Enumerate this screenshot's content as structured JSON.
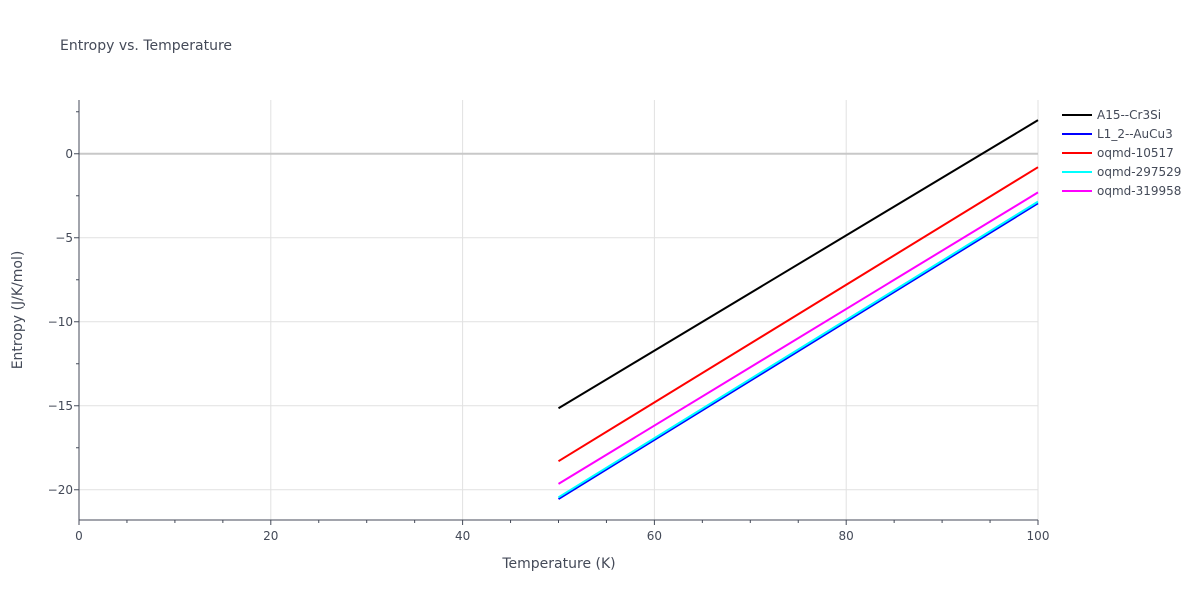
{
  "chart_data": {
    "type": "line",
    "title": "Entropy vs. Temperature",
    "xlabel": "Temperature (K)",
    "ylabel": "Entropy (J/K/mol)",
    "xlim": [
      0,
      100
    ],
    "ylim": [
      -21.8,
      3.2
    ],
    "x_ticks": [
      0,
      20,
      40,
      60,
      80,
      100
    ],
    "y_ticks": [
      0,
      -5,
      -10,
      -15,
      -20
    ],
    "grid": true,
    "legend_position": "top-right",
    "series": [
      {
        "name": "A15--Cr3Si",
        "color": "#000000",
        "x": [
          50,
          100
        ],
        "y": [
          -15.15,
          2.0
        ]
      },
      {
        "name": "L1_2--AuCu3",
        "color": "#0000ff",
        "x": [
          50,
          100
        ],
        "y": [
          -20.55,
          -2.95
        ]
      },
      {
        "name": "oqmd-10517",
        "color": "#ff0000",
        "x": [
          50,
          100
        ],
        "y": [
          -18.3,
          -0.8
        ]
      },
      {
        "name": "oqmd-297529",
        "color": "#00ffff",
        "x": [
          50,
          100
        ],
        "y": [
          -20.45,
          -2.85
        ]
      },
      {
        "name": "oqmd-319958",
        "color": "#ff00ff",
        "x": [
          50,
          100
        ],
        "y": [
          -19.65,
          -2.3
        ]
      }
    ]
  }
}
